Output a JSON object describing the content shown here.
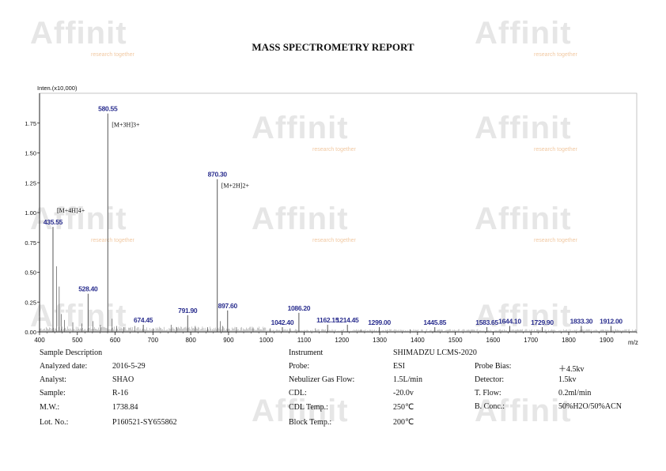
{
  "report_title": "MASS SPECTROMETRY REPORT",
  "watermark": {
    "brand": "Affinit",
    "tagline": "research together"
  },
  "chart_data": {
    "type": "bar",
    "y_axis_title": "Inten.(x10,000)",
    "x_axis_unit": "m/z",
    "xlim": [
      400,
      1980
    ],
    "ylim": [
      0,
      2.0
    ],
    "x_ticks": [
      400,
      500,
      600,
      700,
      800,
      900,
      1000,
      1100,
      1200,
      1300,
      1400,
      1500,
      1600,
      1700,
      1800,
      1900
    ],
    "y_ticks": [
      0.0,
      0.25,
      0.5,
      0.75,
      1.0,
      1.25,
      1.5,
      1.75
    ],
    "y_tick_labels": [
      "0.00",
      "0.25",
      "0.50",
      "0.75",
      "1.00",
      "1.25",
      "1.50",
      "1.75"
    ],
    "peak_color": "#2b2f8f",
    "labeled_peaks": [
      {
        "mz": 435.55,
        "label": "435.55",
        "intensity": 0.88
      },
      {
        "mz": 528.4,
        "label": "528.40",
        "intensity": 0.32
      },
      {
        "mz": 580.55,
        "label": "580.55",
        "intensity": 1.83
      },
      {
        "mz": 674.45,
        "label": "674.45",
        "intensity": 0.06
      },
      {
        "mz": 791.9,
        "label": "791.90",
        "intensity": 0.14
      },
      {
        "mz": 870.3,
        "label": "870.30",
        "intensity": 1.28
      },
      {
        "mz": 897.6,
        "label": "897.60",
        "intensity": 0.18
      },
      {
        "mz": 1042.4,
        "label": "1042.40",
        "intensity": 0.04
      },
      {
        "mz": 1086.2,
        "label": "1086.20",
        "intensity": 0.16
      },
      {
        "mz": 1162.15,
        "label": "1162.15",
        "intensity": 0.06
      },
      {
        "mz": 1214.45,
        "label": "1214.45",
        "intensity": 0.06
      },
      {
        "mz": 1299.0,
        "label": "1299.00",
        "intensity": 0.04
      },
      {
        "mz": 1445.85,
        "label": "1445.85",
        "intensity": 0.04
      },
      {
        "mz": 1583.65,
        "label": "1583.65",
        "intensity": 0.04
      },
      {
        "mz": 1644.1,
        "label": "1644.10",
        "intensity": 0.05
      },
      {
        "mz": 1729.9,
        "label": "1729.90",
        "intensity": 0.04
      },
      {
        "mz": 1833.3,
        "label": "1833.30",
        "intensity": 0.05
      },
      {
        "mz": 1912.0,
        "label": "1912.00",
        "intensity": 0.05
      }
    ],
    "minor_peaks": [
      {
        "mz": 445,
        "intensity": 0.55
      },
      {
        "mz": 452,
        "intensity": 0.38
      },
      {
        "mz": 458,
        "intensity": 0.15
      },
      {
        "mz": 466,
        "intensity": 0.1
      },
      {
        "mz": 488,
        "intensity": 0.08
      },
      {
        "mz": 512,
        "intensity": 0.07
      },
      {
        "mz": 541,
        "intensity": 0.09
      },
      {
        "mz": 561,
        "intensity": 0.06
      },
      {
        "mz": 592,
        "intensity": 0.11
      },
      {
        "mz": 604,
        "intensity": 0.05
      },
      {
        "mz": 623,
        "intensity": 0.04
      },
      {
        "mz": 652,
        "intensity": 0.05
      },
      {
        "mz": 700,
        "intensity": 0.03
      },
      {
        "mz": 748,
        "intensity": 0.06
      },
      {
        "mz": 763,
        "intensity": 0.04
      },
      {
        "mz": 812,
        "intensity": 0.05
      },
      {
        "mz": 845,
        "intensity": 0.04
      },
      {
        "mz": 878,
        "intensity": 0.09
      },
      {
        "mz": 884,
        "intensity": 0.05
      },
      {
        "mz": 921,
        "intensity": 0.04
      },
      {
        "mz": 965,
        "intensity": 0.03
      },
      {
        "mz": 1010,
        "intensity": 0.03
      },
      {
        "mz": 1063,
        "intensity": 0.03
      },
      {
        "mz": 1130,
        "intensity": 0.03
      },
      {
        "mz": 1250,
        "intensity": 0.02
      },
      {
        "mz": 1380,
        "intensity": 0.02
      }
    ],
    "annotations": [
      {
        "mz": 435.55,
        "text": "[M+4H]4+",
        "intensity": 1.0
      },
      {
        "mz": 580.55,
        "text": "[M+3H]3+",
        "intensity": 1.72
      },
      {
        "mz": 870.3,
        "text": "[M+2H]2+",
        "intensity": 1.21
      }
    ]
  },
  "details": {
    "left": [
      {
        "label": "Sample Description",
        "value": ""
      },
      {
        "label": "Analyzed date:",
        "value": "2016-5-29"
      },
      {
        "label": "Analyst:",
        "value": "SHAO"
      },
      {
        "label": "Sample:",
        "value": "R-16"
      },
      {
        "label": "M.W.:",
        "value": "1738.84"
      },
      {
        "label": "Lot. No.:",
        "value": "P160521-SY655862"
      }
    ],
    "middle": [
      {
        "label": "Instrument",
        "value": "SHIMADZU LCMS-2020"
      },
      {
        "label": "Probe:",
        "value": "ESI"
      },
      {
        "label": "Nebulizer Gas Flow:",
        "value": "1.5L/min"
      },
      {
        "label": "CDL:",
        "value": "-20.0v"
      },
      {
        "label": "CDL Temp.:",
        "value": "250℃"
      },
      {
        "label": "Block Temp.:",
        "value": "200℃"
      }
    ],
    "right": [
      {
        "label": "Probe Bias:",
        "value": "＋4.5kv"
      },
      {
        "label": "Detector:",
        "value": "1.5kv"
      },
      {
        "label": "T. Flow:",
        "value": "0.2ml/min"
      },
      {
        "label": "B. Conc.:",
        "value": "50%H2O/50%ACN"
      }
    ]
  }
}
